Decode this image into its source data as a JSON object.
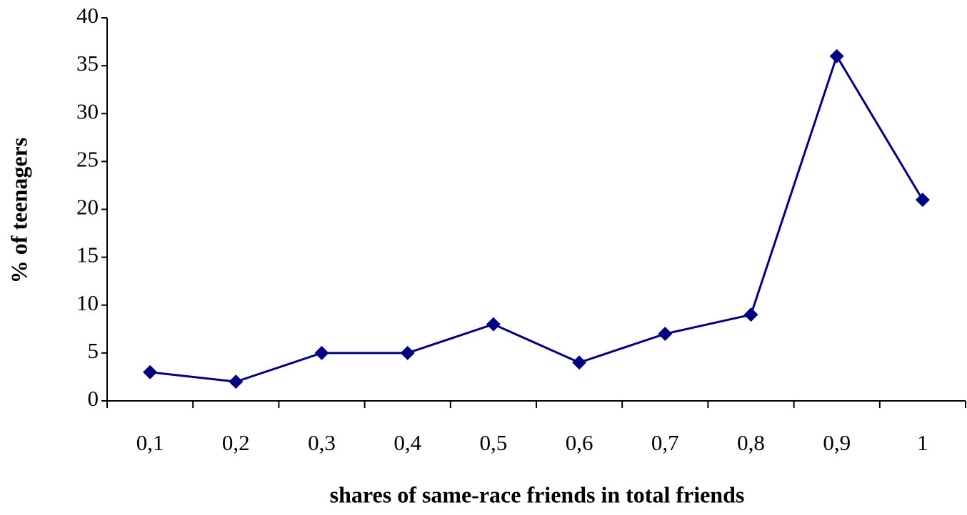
{
  "chart_data": {
    "type": "line",
    "xlabel": "shares of same-race friends in total friends",
    "ylabel": "% of teenagers",
    "categories": [
      "0,1",
      "0,2",
      "0,3",
      "0,4",
      "0,5",
      "0,6",
      "0,7",
      "0,8",
      "0,9",
      "1"
    ],
    "values": [
      3,
      2,
      5,
      5,
      8,
      4,
      7,
      9,
      36,
      21
    ],
    "color": "#000080",
    "ylim": [
      0,
      40
    ],
    "yticks": [
      0,
      5,
      10,
      15,
      20,
      25,
      30,
      35,
      40
    ],
    "grid": false
  }
}
